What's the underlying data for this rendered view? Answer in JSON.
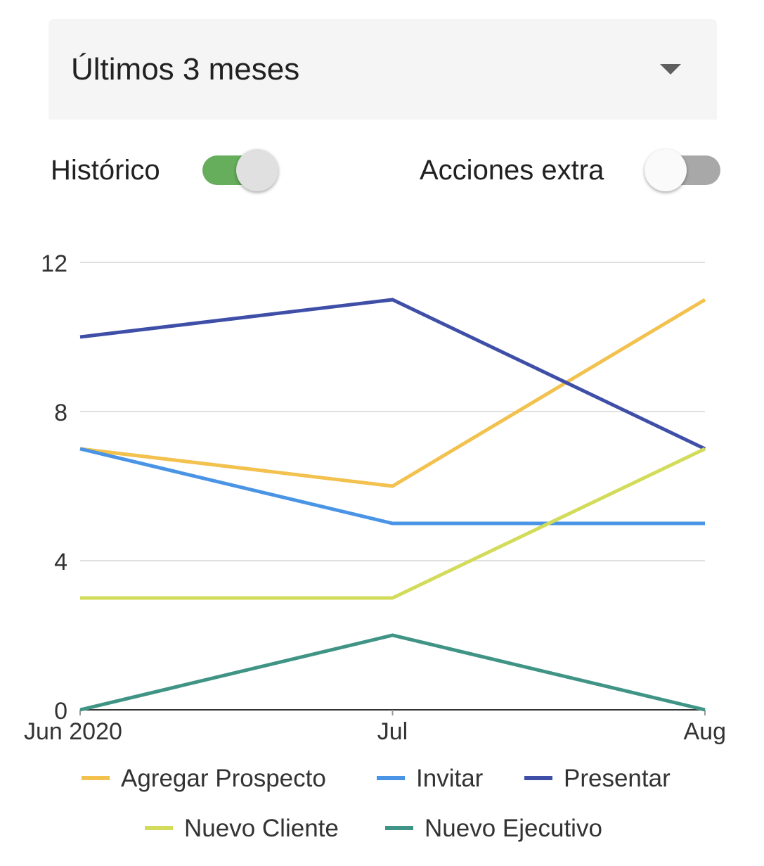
{
  "filter": {
    "selected_period": "Últimos 3 meses",
    "caret_icon": "arrow-drop-down-icon"
  },
  "toggles": {
    "historico": {
      "label": "Histórico",
      "on": true,
      "accent": "#66ad5c"
    },
    "acciones_extra": {
      "label": "Acciones extra",
      "on": false
    }
  },
  "chart_data": {
    "type": "line",
    "categories": [
      "Jun 2020",
      "Jul",
      "Aug"
    ],
    "ylim": [
      0,
      12
    ],
    "yticks": [
      0,
      4,
      8,
      12
    ],
    "grid": true,
    "legend_position": "bottom",
    "series": [
      {
        "name": "Agregar Prospecto",
        "color": "#f2c14e",
        "values": [
          7,
          6,
          11
        ]
      },
      {
        "name": "Invitar",
        "color": "#4a94e6",
        "values": [
          7,
          5,
          5
        ]
      },
      {
        "name": "Presentar",
        "color": "#3f4fa8",
        "values": [
          10,
          11,
          7
        ]
      },
      {
        "name": "Nuevo Cliente",
        "color": "#d3dc5a",
        "values": [
          3,
          3,
          7
        ]
      },
      {
        "name": "Nuevo Ejecutivo",
        "color": "#3f9485",
        "values": [
          0,
          2,
          0
        ]
      }
    ]
  }
}
